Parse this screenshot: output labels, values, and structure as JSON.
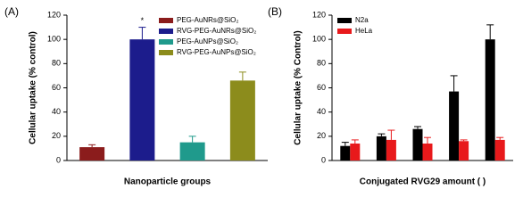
{
  "chart_data": [
    {
      "type": "bar",
      "panel_label": "(A)",
      "xlabel": "Nanoparticle groups",
      "ylabel": "Cellular uptake (% control)",
      "categories": [
        null
      ],
      "annotation": "*",
      "legend": "upper-right",
      "series": [
        {
          "name": "PEG-AuNRs@SiO₂",
          "color": "#8b1c1c",
          "values": [
            11
          ],
          "errors": [
            2
          ]
        },
        {
          "name": "RVG-PEG-AuNRs@SiO₂",
          "color": "#1c1c8c",
          "values": [
            100
          ],
          "errors": [
            10
          ]
        },
        {
          "name": "PEG-AuNPs@SiO₂",
          "color": "#1f9a8c",
          "values": [
            15
          ],
          "errors": [
            5
          ]
        },
        {
          "name": "RVG-PEG-AuNPs@SiO₂",
          "color": "#8c8c1c",
          "values": [
            66
          ],
          "errors": [
            7
          ]
        }
      ],
      "ylim": [
        0,
        120
      ],
      "yticks": [
        0,
        20,
        40,
        60,
        80,
        100,
        120
      ]
    },
    {
      "type": "grouped-bar",
      "panel_label": "(B)",
      "xlabel": "Conjugated RVG29 amount (   )",
      "ylabel": "Cellular uptake (% Control)",
      "categories": [
        null,
        null,
        null,
        null,
        null
      ],
      "legend": "upper-left",
      "series": [
        {
          "name": "N2a",
          "color": "#000000",
          "values": [
            12,
            20,
            26,
            57,
            100
          ],
          "errors": [
            3,
            2,
            2,
            13,
            12
          ]
        },
        {
          "name": "HeLa",
          "color": "#e8191b",
          "values": [
            14,
            17,
            14,
            16,
            17
          ],
          "errors": [
            3,
            8,
            5,
            1,
            2
          ]
        }
      ],
      "ylim": [
        0,
        120
      ],
      "yticks": [
        0,
        20,
        40,
        60,
        80,
        100,
        120
      ]
    }
  ]
}
